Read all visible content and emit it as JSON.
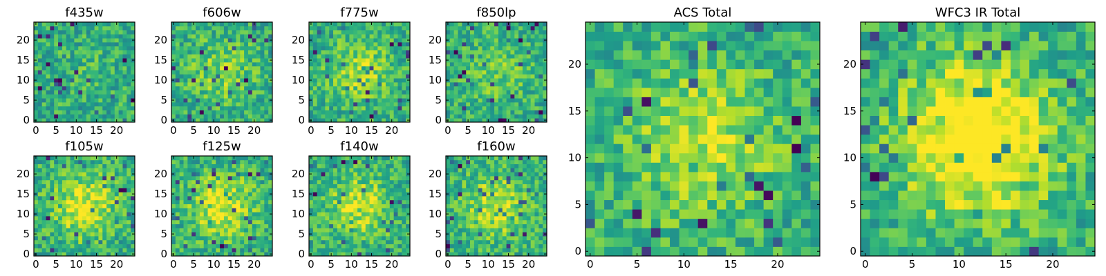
{
  "chart_data": [
    {
      "type": "heatmap",
      "title": "f435w",
      "xticks": [
        "0",
        "5",
        "10",
        "15",
        "20"
      ],
      "yticks": [
        "0",
        "5",
        "10",
        "15",
        "20"
      ],
      "grid": false,
      "cols": 25,
      "rows": 25,
      "seed": 11,
      "peak": 0.05,
      "colormap": "viridis"
    },
    {
      "type": "heatmap",
      "title": "f606w",
      "xticks": [
        "0",
        "5",
        "10",
        "15",
        "20"
      ],
      "yticks": [
        "0",
        "5",
        "10",
        "15",
        "20"
      ],
      "grid": false,
      "cols": 25,
      "rows": 25,
      "seed": 23,
      "peak": 0.2,
      "colormap": "viridis"
    },
    {
      "type": "heatmap",
      "title": "f775w",
      "xticks": [
        "0",
        "5",
        "10",
        "15",
        "20"
      ],
      "yticks": [
        "0",
        "5",
        "10",
        "15",
        "20"
      ],
      "grid": false,
      "cols": 25,
      "rows": 25,
      "seed": 37,
      "peak": 0.25,
      "colormap": "viridis"
    },
    {
      "type": "heatmap",
      "title": "f850lp",
      "xticks": [
        "0",
        "5",
        "10",
        "15",
        "20"
      ],
      "yticks": [
        "0",
        "5",
        "10",
        "15",
        "20"
      ],
      "grid": false,
      "cols": 25,
      "rows": 25,
      "seed": 41,
      "peak": 0.15,
      "colormap": "viridis"
    },
    {
      "type": "heatmap",
      "title": "f105w",
      "xticks": [
        "0",
        "5",
        "10",
        "15",
        "20"
      ],
      "yticks": [
        "0",
        "5",
        "10",
        "15",
        "20"
      ],
      "grid": false,
      "cols": 25,
      "rows": 25,
      "seed": 53,
      "peak": 0.35,
      "colormap": "viridis"
    },
    {
      "type": "heatmap",
      "title": "f125w",
      "xticks": [
        "0",
        "5",
        "10",
        "15",
        "20"
      ],
      "yticks": [
        "0",
        "5",
        "10",
        "15",
        "20"
      ],
      "grid": false,
      "cols": 25,
      "rows": 25,
      "seed": 67,
      "peak": 0.35,
      "colormap": "viridis"
    },
    {
      "type": "heatmap",
      "title": "f140w",
      "xticks": [
        "0",
        "5",
        "10",
        "15",
        "20"
      ],
      "yticks": [
        "0",
        "5",
        "10",
        "15",
        "20"
      ],
      "grid": false,
      "cols": 25,
      "rows": 25,
      "seed": 71,
      "peak": 0.3,
      "colormap": "viridis"
    },
    {
      "type": "heatmap",
      "title": "f160w",
      "xticks": [
        "0",
        "5",
        "10",
        "15",
        "20"
      ],
      "yticks": [
        "0",
        "5",
        "10",
        "15",
        "20"
      ],
      "grid": false,
      "cols": 25,
      "rows": 25,
      "seed": 83,
      "peak": 0.3,
      "colormap": "viridis"
    },
    {
      "type": "heatmap",
      "title": "ACS Total",
      "xticks": [
        "0",
        "5",
        "10",
        "15",
        "20"
      ],
      "yticks": [
        "0",
        "5",
        "10",
        "15",
        "20"
      ],
      "grid": false,
      "cols": 25,
      "rows": 25,
      "seed": 97,
      "peak": 0.3,
      "colormap": "viridis"
    },
    {
      "type": "heatmap",
      "title": "WFC3 IR Total",
      "xticks": [
        "0",
        "5",
        "10",
        "15",
        "20"
      ],
      "yticks": [
        "0",
        "5",
        "10",
        "15",
        "20"
      ],
      "grid": false,
      "cols": 25,
      "rows": 25,
      "seed": 101,
      "peak": 0.55,
      "colormap": "viridis"
    }
  ]
}
